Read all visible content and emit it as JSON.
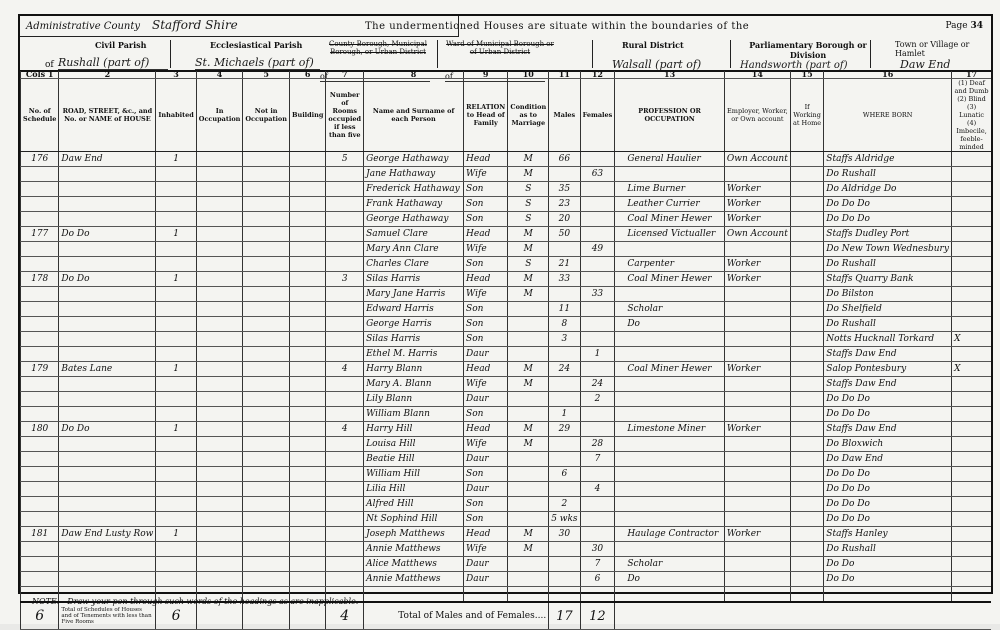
{
  "header": {
    "admin_county_label": "Administrative County",
    "admin_county": "Stafford Shire",
    "intro": "The undermentioned Houses are situate within the boundaries of the",
    "page_label": "Page",
    "page_number": "34",
    "civil_parish_label": "Civil Parish",
    "civil_parish": "Rushall (part of)",
    "eccl_parish_label": "Ecclesiastical Parish",
    "eccl_parish": "St. Michaels (part of)",
    "county_borough_label": "County Borough, Municipal Borough, or Urban District",
    "ward_label": "Ward of Municipal Borough or of Urban District",
    "rural_district_label": "Rural District",
    "rural_district": "Walsall (part of)",
    "parliamentary_label": "Parliamentary Borough or Division",
    "parliamentary": "Handsworth (part of)",
    "hamlet_label": "Town or Village or Hamlet",
    "hamlet": "Daw End",
    "of": "of"
  },
  "columns": {
    "numbers": [
      "Cols 1",
      "2",
      "3",
      "4",
      "5",
      "6",
      "7",
      "8",
      "9",
      "10",
      "11",
      "12",
      "13",
      "14",
      "15",
      "16",
      "17"
    ],
    "houses_label": "HOUSES",
    "uninhabited_label": "Uninhabited",
    "age_label": "Age last Birthday of",
    "labels": [
      "No. of Schedule",
      "ROAD, STREET, &c., and No. or NAME of HOUSE",
      "Inhabited",
      "In Occupation",
      "Not in Occupation",
      "Building",
      "Number of Rooms occupied if less than five",
      "Name and Surname of each Person",
      "RELATION to Head of Family",
      "Condition as to Marriage",
      "Males",
      "Females",
      "PROFESSION OR OCCUPATION",
      "Employer, Worker, or Own account",
      "If Working at Home",
      "WHERE BORN",
      "(1) Deaf and Dumb (2) Blind (3) Lunatic (4) Imbecile, feeble-minded"
    ]
  },
  "rows": [
    {
      "schedule": "176",
      "address": "Daw End",
      "inhabited": "1",
      "rooms": "5",
      "name": "George Hathaway",
      "relation": "Head",
      "condition": "M",
      "male": "66",
      "female": "",
      "occupation": "General Haulier",
      "employment": "Own Account",
      "born": "Staffs Aldridge",
      "infirmity": ""
    },
    {
      "schedule": "",
      "address": "",
      "inhabited": "",
      "rooms": "",
      "name": "Jane Hathaway",
      "relation": "Wife",
      "condition": "M",
      "male": "",
      "female": "63",
      "occupation": "",
      "employment": "",
      "born": "Do Rushall",
      "infirmity": ""
    },
    {
      "schedule": "",
      "address": "",
      "inhabited": "",
      "rooms": "",
      "name": "Frederick Hathaway",
      "relation": "Son",
      "condition": "S",
      "male": "35",
      "female": "",
      "occupation": "Lime Burner",
      "employment": "Worker",
      "born": "Do Aldridge Do",
      "infirmity": ""
    },
    {
      "schedule": "",
      "address": "",
      "inhabited": "",
      "rooms": "",
      "name": "Frank Hathaway",
      "relation": "Son",
      "condition": "S",
      "male": "23",
      "female": "",
      "occupation": "Leather Currier",
      "employment": "Worker",
      "born": "Do Do Do",
      "infirmity": ""
    },
    {
      "schedule": "",
      "address": "",
      "inhabited": "",
      "rooms": "",
      "name": "George Hathaway",
      "relation": "Son",
      "condition": "S",
      "male": "20",
      "female": "",
      "occupation": "Coal Miner Hewer",
      "employment": "Worker",
      "born": "Do Do Do",
      "infirmity": ""
    },
    {
      "schedule": "177",
      "address": "Do Do",
      "inhabited": "1",
      "rooms": "",
      "name": "Samuel Clare",
      "relation": "Head",
      "condition": "M",
      "male": "50",
      "female": "",
      "occupation": "Licensed Victualler",
      "employment": "Own Account",
      "born": "Staffs Dudley Port",
      "infirmity": ""
    },
    {
      "schedule": "",
      "address": "",
      "inhabited": "",
      "rooms": "",
      "name": "Mary Ann Clare",
      "relation": "Wife",
      "condition": "M",
      "male": "",
      "female": "49",
      "occupation": "",
      "employment": "",
      "born": "Do New Town Wednesbury",
      "infirmity": ""
    },
    {
      "schedule": "",
      "address": "",
      "inhabited": "",
      "rooms": "",
      "name": "Charles Clare",
      "relation": "Son",
      "condition": "S",
      "male": "21",
      "female": "",
      "occupation": "Carpenter",
      "employment": "Worker",
      "born": "Do Rushall",
      "infirmity": ""
    },
    {
      "schedule": "178",
      "address": "Do Do",
      "inhabited": "1",
      "rooms": "3",
      "name": "Silas Harris",
      "relation": "Head",
      "condition": "M",
      "male": "33",
      "female": "",
      "occupation": "Coal Miner Hewer",
      "employment": "Worker",
      "born": "Staffs Quarry Bank",
      "infirmity": ""
    },
    {
      "schedule": "",
      "address": "",
      "inhabited": "",
      "rooms": "",
      "name": "Mary Jane Harris",
      "relation": "Wife",
      "condition": "M",
      "male": "",
      "female": "33",
      "occupation": "",
      "employment": "",
      "born": "Do Bilston",
      "infirmity": ""
    },
    {
      "schedule": "",
      "address": "",
      "inhabited": "",
      "rooms": "",
      "name": "Edward Harris",
      "relation": "Son",
      "condition": "",
      "male": "11",
      "female": "",
      "occupation": "Scholar",
      "employment": "",
      "born": "Do Shelfield",
      "infirmity": ""
    },
    {
      "schedule": "",
      "address": "",
      "inhabited": "",
      "rooms": "",
      "name": "George Harris",
      "relation": "Son",
      "condition": "",
      "male": "8",
      "female": "",
      "occupation": "Do",
      "employment": "",
      "born": "Do Rushall",
      "infirmity": ""
    },
    {
      "schedule": "",
      "address": "",
      "inhabited": "",
      "rooms": "",
      "name": "Silas Harris",
      "relation": "Son",
      "condition": "",
      "male": "3",
      "female": "",
      "occupation": "",
      "employment": "",
      "born": "Notts Hucknall Torkard",
      "infirmity": "X"
    },
    {
      "schedule": "",
      "address": "",
      "inhabited": "",
      "rooms": "",
      "name": "Ethel M. Harris",
      "relation": "Daur",
      "condition": "",
      "male": "",
      "female": "1",
      "occupation": "",
      "employment": "",
      "born": "Staffs Daw End",
      "infirmity": ""
    },
    {
      "schedule": "179",
      "address": "Bates Lane",
      "inhabited": "1",
      "rooms": "4",
      "name": "Harry Blann",
      "relation": "Head",
      "condition": "M",
      "male": "24",
      "female": "",
      "occupation": "Coal Miner Hewer",
      "employment": "Worker",
      "born": "Salop Pontesbury",
      "infirmity": "X"
    },
    {
      "schedule": "",
      "address": "",
      "inhabited": "",
      "rooms": "",
      "name": "Mary A. Blann",
      "relation": "Wife",
      "condition": "M",
      "male": "",
      "female": "24",
      "occupation": "",
      "employment": "",
      "born": "Staffs Daw End",
      "infirmity": ""
    },
    {
      "schedule": "",
      "address": "",
      "inhabited": "",
      "rooms": "",
      "name": "Lily Blann",
      "relation": "Daur",
      "condition": "",
      "male": "",
      "female": "2",
      "occupation": "",
      "employment": "",
      "born": "Do Do Do",
      "infirmity": ""
    },
    {
      "schedule": "",
      "address": "",
      "inhabited": "",
      "rooms": "",
      "name": "William Blann",
      "relation": "Son",
      "condition": "",
      "male": "1",
      "female": "",
      "occupation": "",
      "employment": "",
      "born": "Do Do Do",
      "infirmity": ""
    },
    {
      "schedule": "180",
      "address": "Do Do",
      "inhabited": "1",
      "rooms": "4",
      "name": "Harry Hill",
      "relation": "Head",
      "condition": "M",
      "male": "29",
      "female": "",
      "occupation": "Limestone Miner",
      "employment": "Worker",
      "born": "Staffs Daw End",
      "infirmity": ""
    },
    {
      "schedule": "",
      "address": "",
      "inhabited": "",
      "rooms": "",
      "name": "Louisa Hill",
      "relation": "Wife",
      "condition": "M",
      "male": "",
      "female": "28",
      "occupation": "",
      "employment": "",
      "born": "Do Bloxwich",
      "infirmity": ""
    },
    {
      "schedule": "",
      "address": "",
      "inhabited": "",
      "rooms": "",
      "name": "Beatie Hill",
      "relation": "Daur",
      "condition": "",
      "male": "",
      "female": "7",
      "occupation": "",
      "employment": "",
      "born": "Do Daw End",
      "infirmity": ""
    },
    {
      "schedule": "",
      "address": "",
      "inhabited": "",
      "rooms": "",
      "name": "William Hill",
      "relation": "Son",
      "condition": "",
      "male": "6",
      "female": "",
      "occupation": "",
      "employment": "",
      "born": "Do Do Do",
      "infirmity": ""
    },
    {
      "schedule": "",
      "address": "",
      "inhabited": "",
      "rooms": "",
      "name": "Lilia Hill",
      "relation": "Daur",
      "condition": "",
      "male": "",
      "female": "4",
      "occupation": "",
      "employment": "",
      "born": "Do Do Do",
      "infirmity": ""
    },
    {
      "schedule": "",
      "address": "",
      "inhabited": "",
      "rooms": "",
      "name": "Alfred Hill",
      "relation": "Son",
      "condition": "",
      "male": "2",
      "female": "",
      "occupation": "",
      "employment": "",
      "born": "Do Do Do",
      "infirmity": ""
    },
    {
      "schedule": "",
      "address": "",
      "inhabited": "",
      "rooms": "",
      "name": "Nt Sophind Hill",
      "relation": "Son",
      "condition": "",
      "male": "5 wks",
      "female": "",
      "occupation": "",
      "employment": "",
      "born": "Do Do Do",
      "infirmity": ""
    },
    {
      "schedule": "181",
      "address": "Daw End Lusty Row",
      "inhabited": "1",
      "rooms": "",
      "name": "Joseph Matthews",
      "relation": "Head",
      "condition": "M",
      "male": "30",
      "female": "",
      "occupation": "Haulage Contractor",
      "employment": "Worker",
      "born": "Staffs Hanley",
      "infirmity": ""
    },
    {
      "schedule": "",
      "address": "",
      "inhabited": "",
      "rooms": "",
      "name": "Annie Matthews",
      "relation": "Wife",
      "condition": "M",
      "male": "",
      "female": "30",
      "occupation": "",
      "employment": "",
      "born": "Do Rushall",
      "infirmity": ""
    },
    {
      "schedule": "",
      "address": "",
      "inhabited": "",
      "rooms": "",
      "name": "Alice Matthews",
      "relation": "Daur",
      "condition": "",
      "male": "",
      "female": "7",
      "occupation": "Scholar",
      "employment": "",
      "born": "Do Do",
      "infirmity": ""
    },
    {
      "schedule": "",
      "address": "",
      "inhabited": "",
      "rooms": "",
      "name": "Annie Matthews",
      "relation": "Daur",
      "condition": "",
      "male": "",
      "female": "6",
      "occupation": "Do",
      "employment": "",
      "born": "Do Do",
      "infirmity": ""
    }
  ],
  "totals": {
    "schedules": "6",
    "schedules_label": "Total of Schedules of Houses and of Tenements with less than Five Rooms",
    "inhabited": "6",
    "rooms": "4",
    "label": "Total of Males and of Females....",
    "males": "17",
    "females": "12"
  },
  "note": "NOTE.—Draw your pen through such words of the headings as are inapplicable."
}
